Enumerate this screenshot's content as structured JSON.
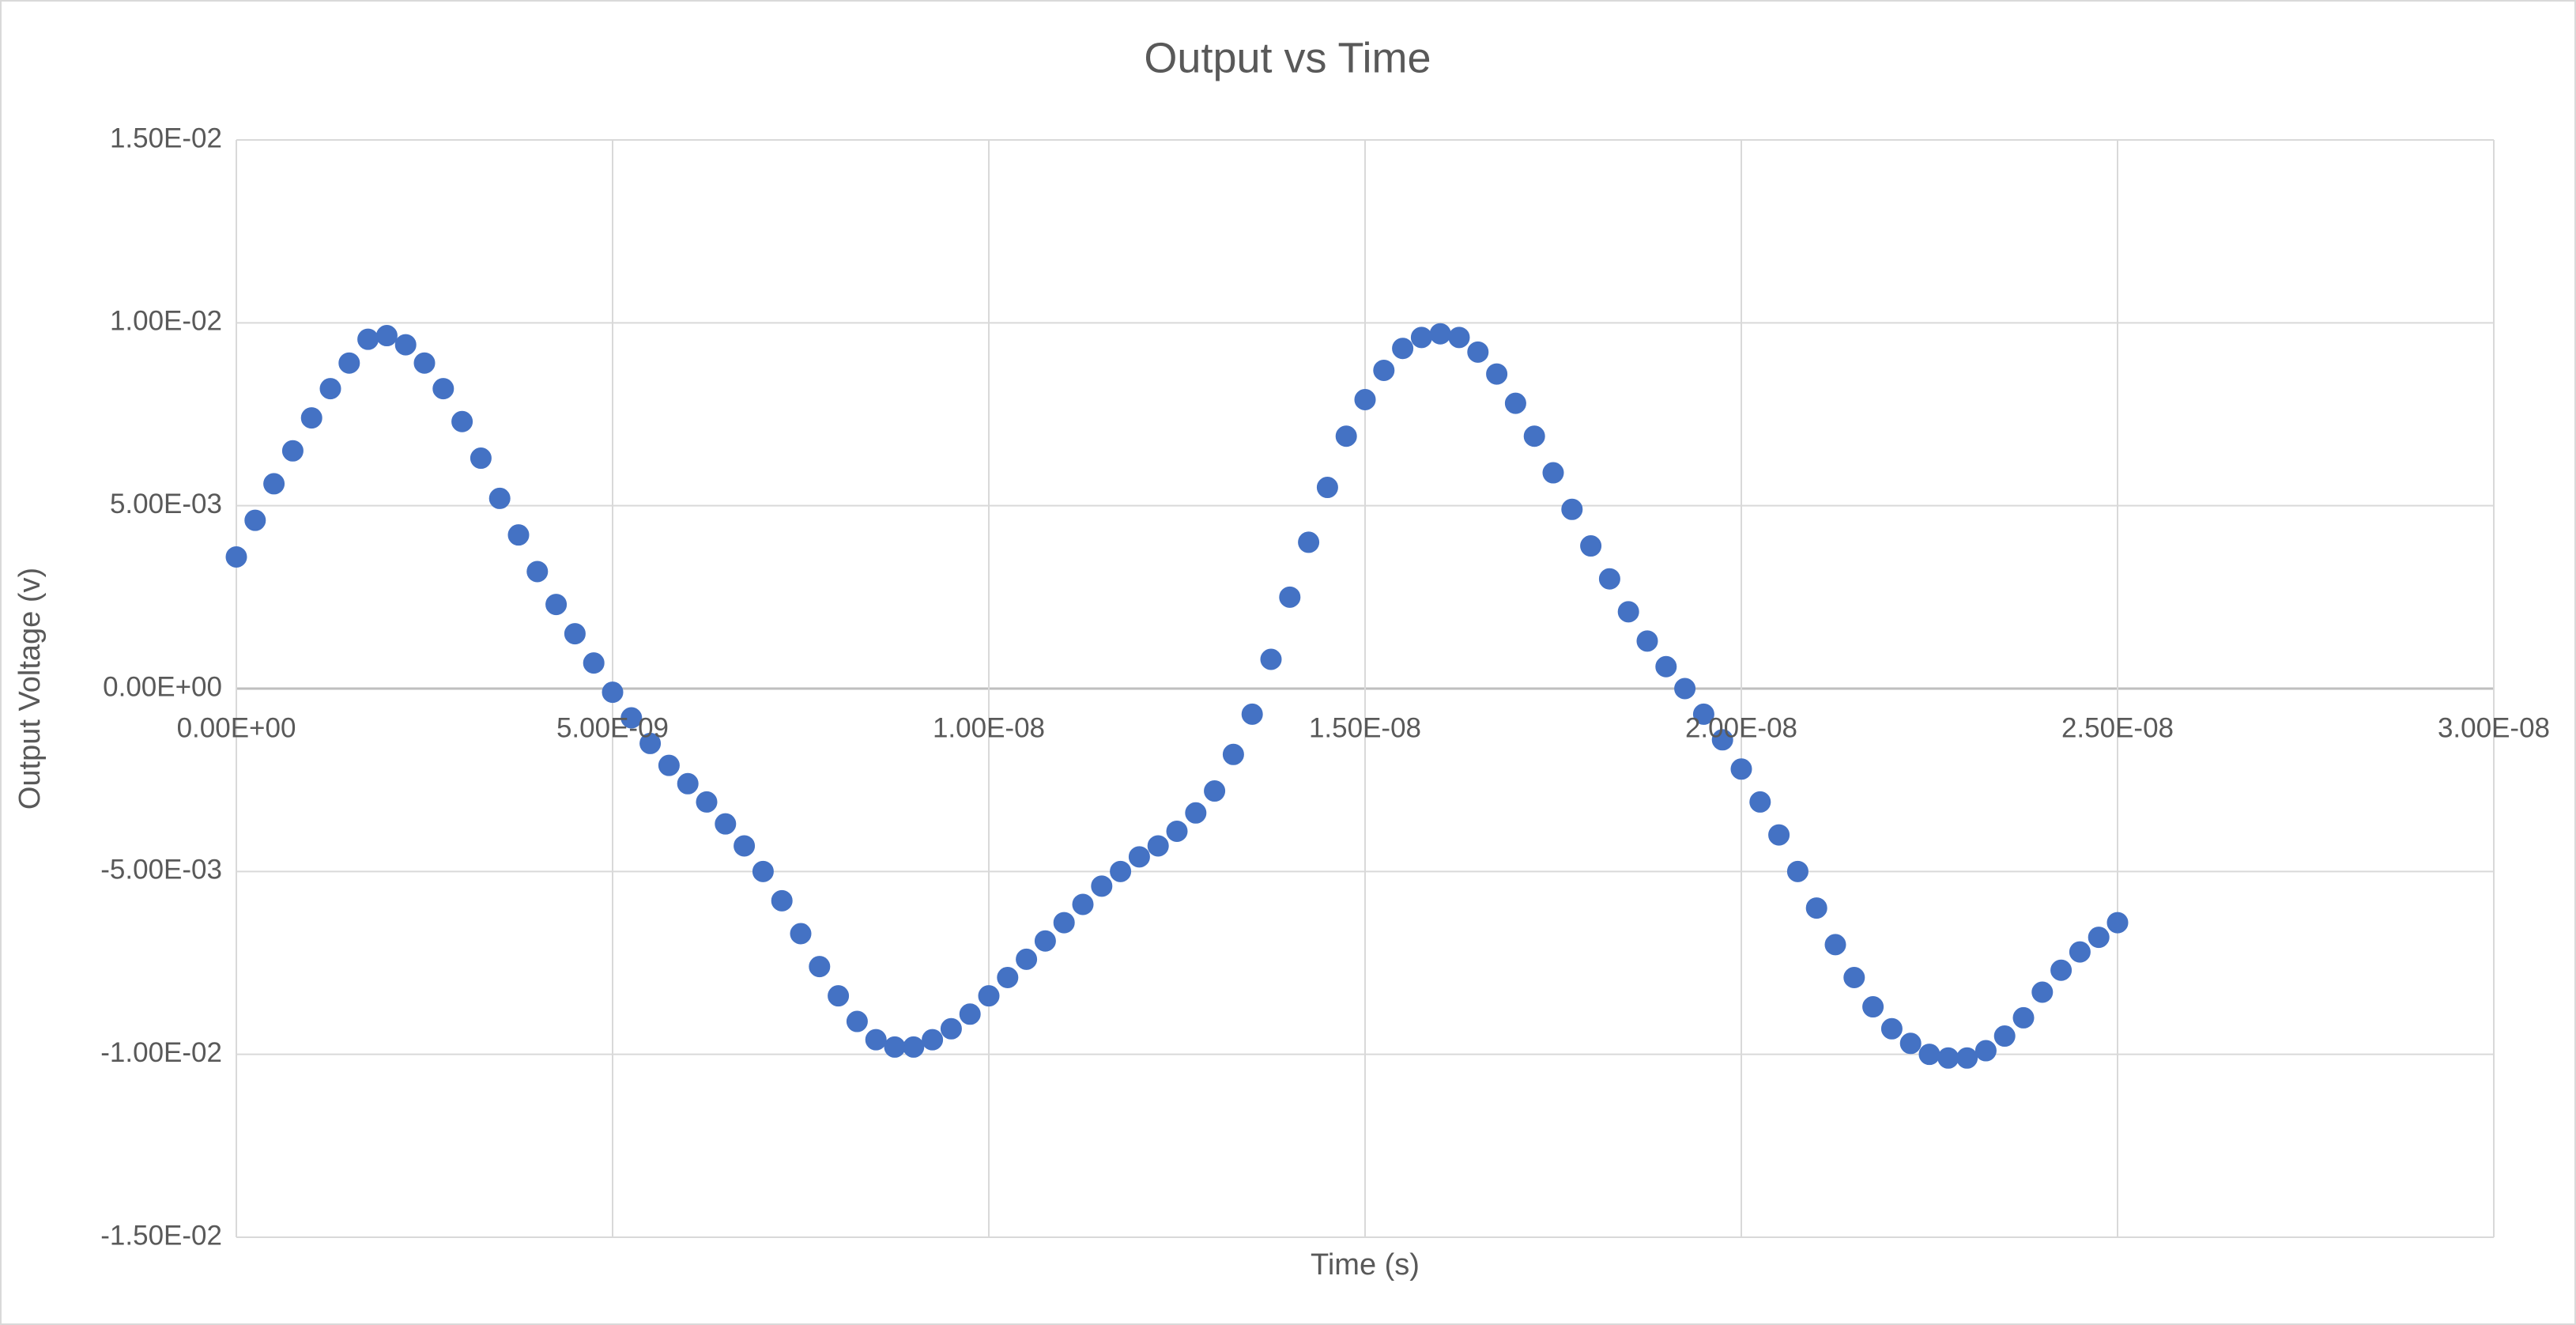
{
  "chart_data": {
    "type": "scatter",
    "title": "Output vs Time",
    "x_label": "Time (s)",
    "y_label": "Output Voltage (v)",
    "xlim": [
      0,
      3e-08
    ],
    "ylim": [
      -0.015,
      0.015
    ],
    "xticks": [
      {
        "value": 0,
        "label": "0.00E+00"
      },
      {
        "value": 5e-09,
        "label": "5.00E-09"
      },
      {
        "value": 1e-08,
        "label": "1.00E-08"
      },
      {
        "value": 1.5e-08,
        "label": "1.50E-08"
      },
      {
        "value": 2e-08,
        "label": "2.00E-08"
      },
      {
        "value": 2.5e-08,
        "label": "2.50E-08"
      },
      {
        "value": 3e-08,
        "label": "3.00E-08"
      }
    ],
    "yticks": [
      {
        "value": -0.015,
        "label": "-1.50E-02"
      },
      {
        "value": -0.01,
        "label": "-1.00E-02"
      },
      {
        "value": -0.005,
        "label": "-5.00E-03"
      },
      {
        "value": 0,
        "label": "0.00E+00"
      },
      {
        "value": 0.005,
        "label": "5.00E-03"
      },
      {
        "value": 0.01,
        "label": "1.00E-02"
      },
      {
        "value": 0.015,
        "label": "1.50E-02"
      }
    ],
    "grid": true,
    "series": [
      {
        "color": "#4472c4",
        "x": [
          0,
          2.5e-10,
          5e-10,
          7.5e-10,
          1e-09,
          1.25e-09,
          1.5e-09,
          1.75e-09,
          2e-09,
          2.25e-09,
          2.5e-09,
          2.75e-09,
          3e-09,
          3.25e-09,
          3.5e-09,
          3.75e-09,
          4e-09,
          4.25e-09,
          4.5e-09,
          4.75e-09,
          5e-09,
          5.25e-09,
          5.5e-09,
          5.75e-09,
          6e-09,
          6.25e-09,
          6.5e-09,
          6.75e-09,
          7e-09,
          7.25e-09,
          7.5e-09,
          7.75e-09,
          8e-09,
          8.25e-09,
          8.5e-09,
          8.75e-09,
          9e-09,
          9.25e-09,
          9.5e-09,
          9.75e-09,
          1e-08,
          1.025e-08,
          1.05e-08,
          1.075e-08,
          1.1e-08,
          1.125e-08,
          1.15e-08,
          1.175e-08,
          1.2e-08,
          1.225e-08,
          1.25e-08,
          1.275e-08,
          1.3e-08,
          1.325e-08,
          1.35e-08,
          1.375e-08,
          1.4e-08,
          1.425e-08,
          1.45e-08,
          1.475e-08,
          1.5e-08,
          1.525e-08,
          1.55e-08,
          1.575e-08,
          1.6e-08,
          1.625e-08,
          1.65e-08,
          1.675e-08,
          1.7e-08,
          1.725e-08,
          1.75e-08,
          1.775e-08,
          1.8e-08,
          1.825e-08,
          1.85e-08,
          1.875e-08,
          1.9e-08,
          1.925e-08,
          1.95e-08,
          1.975e-08,
          2e-08,
          2.025e-08,
          2.05e-08,
          2.075e-08,
          2.1e-08,
          2.125e-08,
          2.15e-08,
          2.175e-08,
          2.2e-08,
          2.225e-08,
          2.25e-08,
          2.275e-08,
          2.3e-08,
          2.325e-08,
          2.35e-08,
          2.375e-08,
          2.4e-08,
          2.425e-08,
          2.45e-08,
          2.475e-08,
          2.5e-08
        ],
        "values": [
          0.0036,
          0.0046,
          0.0056,
          0.0065,
          0.0074,
          0.0082,
          0.0089,
          0.00955,
          0.00965,
          0.0094,
          0.0089,
          0.0082,
          0.0073,
          0.0063,
          0.0052,
          0.0042,
          0.0032,
          0.0023,
          0.0015,
          0.0007,
          -0.0001,
          -0.0008,
          -0.0015,
          -0.0021,
          -0.0026,
          -0.0031,
          -0.0037,
          -0.0043,
          -0.005,
          -0.0058,
          -0.0067,
          -0.0076,
          -0.0084,
          -0.0091,
          -0.0096,
          -0.0098,
          -0.0098,
          -0.0096,
          -0.0093,
          -0.0089,
          -0.0084,
          -0.0079,
          -0.0074,
          -0.0069,
          -0.0064,
          -0.0059,
          -0.0054,
          -0.005,
          -0.0046,
          -0.0043,
          -0.0039,
          -0.0034,
          -0.0028,
          -0.0018,
          -0.0007,
          0.0008,
          0.0025,
          0.004,
          0.0055,
          0.0069,
          0.0079,
          0.0087,
          0.0093,
          0.0096,
          0.0097,
          0.0096,
          0.0092,
          0.0086,
          0.0078,
          0.0069,
          0.0059,
          0.0049,
          0.0039,
          0.003,
          0.0021,
          0.0013,
          0.0006,
          0.0,
          -0.0007,
          -0.0014,
          -0.0022,
          -0.0031,
          -0.004,
          -0.005,
          -0.006,
          -0.007,
          -0.0079,
          -0.0087,
          -0.0093,
          -0.0097,
          -0.01,
          -0.0101,
          -0.0101,
          -0.0099,
          -0.0095,
          -0.009,
          -0.0083,
          -0.0077,
          -0.0072,
          -0.0068,
          -0.0064
        ]
      }
    ]
  }
}
